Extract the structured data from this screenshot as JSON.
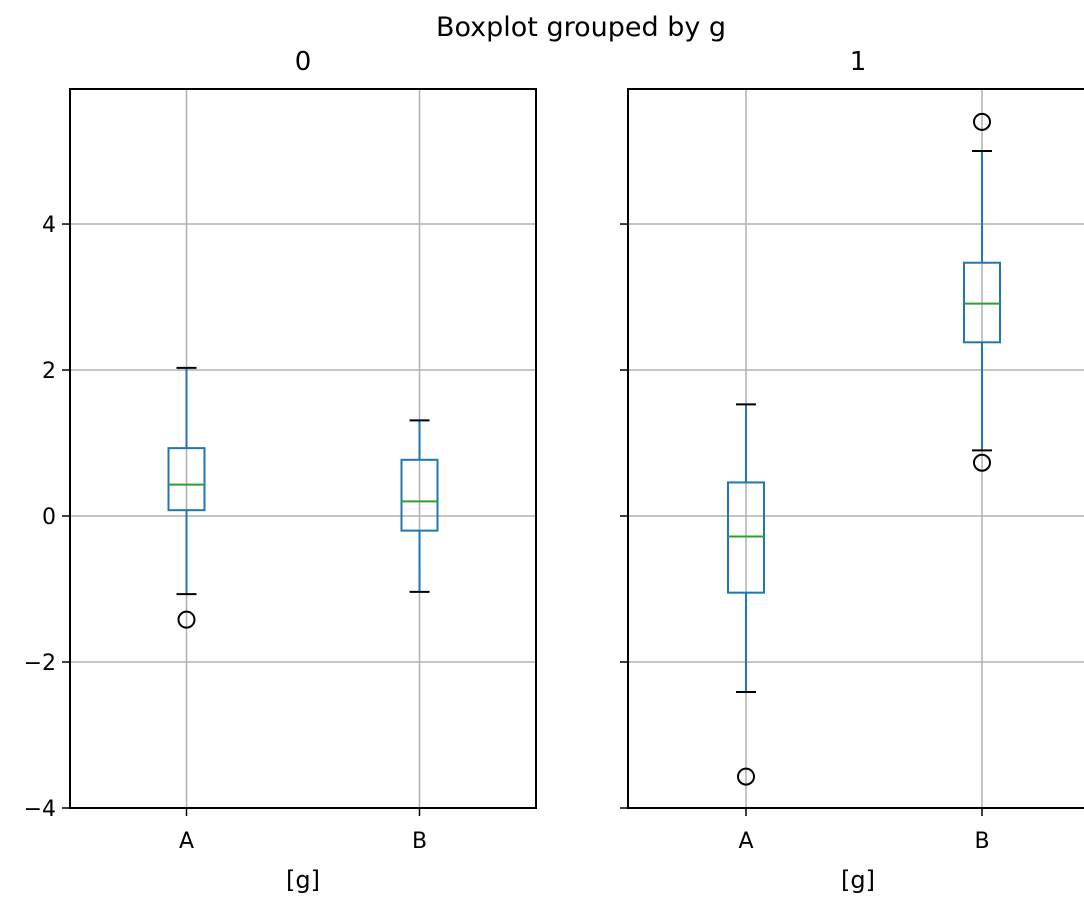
{
  "chart_data": {
    "type": "boxplot",
    "title": "Boxplot grouped by g",
    "grid": true,
    "shared_y": true,
    "ylim": [
      -4,
      5.85
    ],
    "yticks": [
      -4,
      -2,
      0,
      2,
      4
    ],
    "ytick_labels": [
      "−4",
      "−2",
      "0",
      "2",
      "4"
    ],
    "colors": {
      "box": "#1f77b4",
      "median": "#2ca02c",
      "whisker": "#1f77b4",
      "cap": "#000000",
      "outlier": "#000000",
      "grid": "#b0b0b0",
      "axis": "#000000"
    },
    "panels": [
      {
        "title": "0",
        "xlabel": "[g]",
        "categories": [
          "A",
          "B"
        ],
        "boxes": [
          {
            "category": "A",
            "whislo": -1.07,
            "q1": 0.08,
            "med": 0.43,
            "q3": 0.93,
            "whishi": 2.03,
            "fliers": [
              -1.42
            ]
          },
          {
            "category": "B",
            "whislo": -1.04,
            "q1": -0.2,
            "med": 0.2,
            "q3": 0.77,
            "whishi": 1.31,
            "fliers": []
          }
        ]
      },
      {
        "title": "1",
        "xlabel": "[g]",
        "categories": [
          "A",
          "B"
        ],
        "boxes": [
          {
            "category": "A",
            "whislo": -2.41,
            "q1": -1.05,
            "med": -0.28,
            "q3": 0.46,
            "whishi": 1.53,
            "fliers": [
              -3.57
            ]
          },
          {
            "category": "B",
            "whislo": 0.9,
            "q1": 2.38,
            "med": 2.91,
            "q3": 3.47,
            "whishi": 5.0,
            "fliers": [
              0.73,
              5.4
            ]
          }
        ]
      }
    ]
  }
}
